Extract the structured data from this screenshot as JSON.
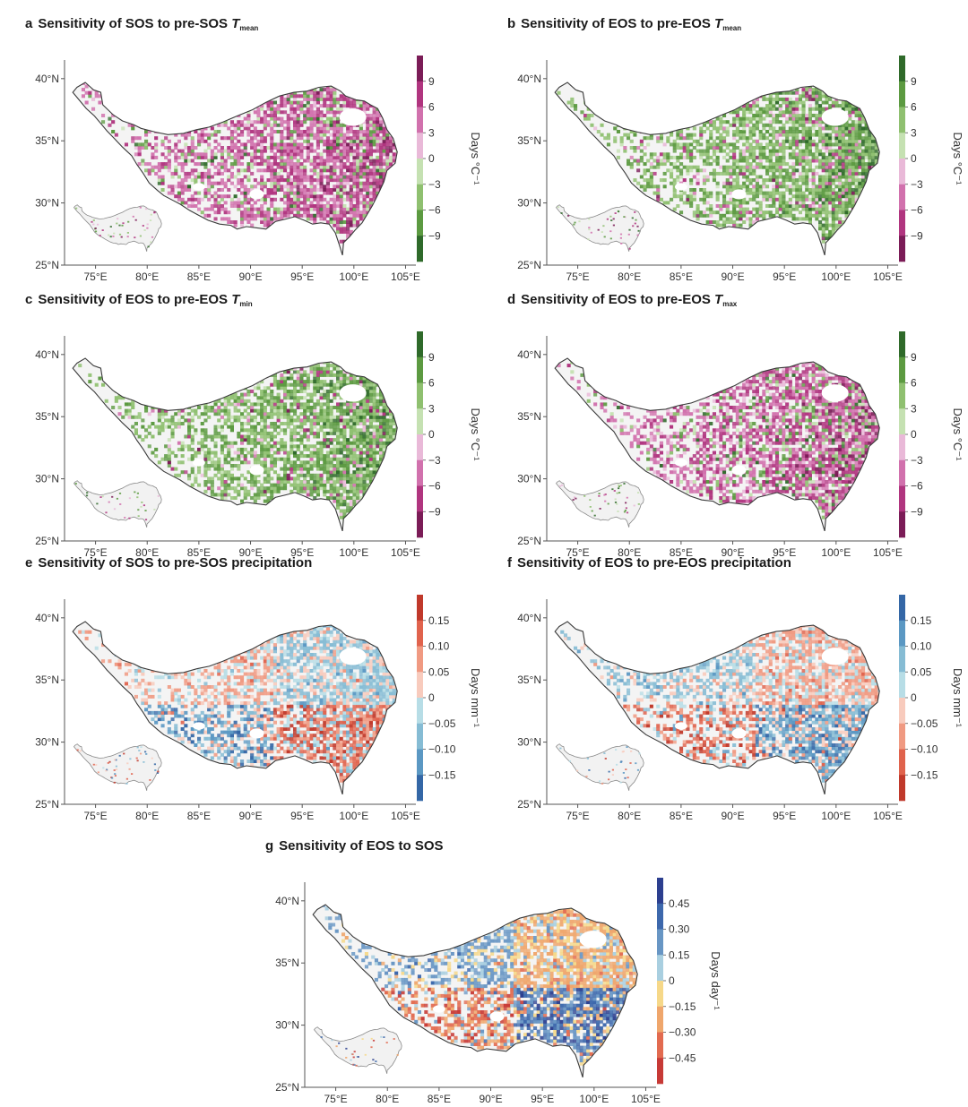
{
  "figure": {
    "panels": [
      {
        "id": "a",
        "letter": "a",
        "title_text": "Sensitivity of SOS to pre-SOS ",
        "title_var": "T",
        "title_sub": "mean",
        "unit_label": "Days °C⁻¹",
        "colorbar": {
          "ticks": [
            "9",
            "6",
            "3",
            "0",
            "−3",
            "−6",
            "−9"
          ],
          "colors": [
            "#7b1c57",
            "#b0357f",
            "#d171ad",
            "#e9b9d8",
            "#c5e1b2",
            "#8fc070",
            "#5c9a41",
            "#2f6a2a"
          ]
        },
        "field": {
          "dominant": "positive",
          "noise": 0.55
        }
      },
      {
        "id": "b",
        "letter": "b",
        "title_text": "Sensitivity of EOS to pre-EOS ",
        "title_var": "T",
        "title_sub": "mean",
        "unit_label": "Days °C⁻¹",
        "colorbar": {
          "ticks": [
            "9",
            "6",
            "3",
            "0",
            "−3",
            "−6",
            "−9"
          ],
          "colors": [
            "#2f6a2a",
            "#5c9a41",
            "#8fc070",
            "#c5e1b2",
            "#e9b9d8",
            "#d171ad",
            "#b0357f",
            "#7b1c57"
          ]
        },
        "field": {
          "dominant": "positive",
          "noise": 0.45
        }
      },
      {
        "id": "c",
        "letter": "c",
        "title_text": "Sensitivity of EOS to pre-EOS ",
        "title_var": "T",
        "title_sub": "min",
        "unit_label": "Days °C⁻¹",
        "colorbar": {
          "ticks": [
            "9",
            "6",
            "3",
            "0",
            "−3",
            "−6",
            "−9"
          ],
          "colors": [
            "#2f6a2a",
            "#5c9a41",
            "#8fc070",
            "#c5e1b2",
            "#e9b9d8",
            "#d171ad",
            "#b0357f",
            "#7b1c57"
          ]
        },
        "field": {
          "dominant": "positive",
          "noise": 0.3
        }
      },
      {
        "id": "d",
        "letter": "d",
        "title_text": "Sensitivity of EOS to pre-EOS ",
        "title_var": "T",
        "title_sub": "max",
        "unit_label": "Days °C⁻¹",
        "colorbar": {
          "ticks": [
            "9",
            "6",
            "3",
            "0",
            "−3",
            "−6",
            "−9"
          ],
          "colors": [
            "#2f6a2a",
            "#5c9a41",
            "#8fc070",
            "#c5e1b2",
            "#e9b9d8",
            "#d171ad",
            "#b0357f",
            "#7b1c57"
          ]
        },
        "field": {
          "dominant": "negative",
          "noise": 0.5
        }
      },
      {
        "id": "e",
        "letter": "e",
        "title_text": "Sensitivity of SOS to pre-SOS precipitation",
        "title_var": "",
        "title_sub": "",
        "unit_label": "Days mm⁻¹",
        "colorbar": {
          "ticks": [
            "0.15",
            "0.10",
            "0.05",
            "0",
            "−0.05",
            "−0.10",
            "−0.15"
          ],
          "colors": [
            "#c0392b",
            "#e0634d",
            "#f09a82",
            "#f8cbbd",
            "#b7dde6",
            "#86bcd4",
            "#5b98c3",
            "#3467a6"
          ]
        },
        "field": {
          "dominant": "mixed",
          "noise": 0.6
        }
      },
      {
        "id": "f",
        "letter": "f",
        "title_text": "Sensitivity of EOS to pre-EOS precipitation",
        "title_var": "",
        "title_sub": "",
        "unit_label": "Days mm⁻¹",
        "colorbar": {
          "ticks": [
            "0.15",
            "0.10",
            "0.05",
            "0",
            "−0.05",
            "−0.10",
            "−0.15"
          ],
          "colors": [
            "#3467a6",
            "#5b98c3",
            "#86bcd4",
            "#b7dde6",
            "#f8cbbd",
            "#f09a82",
            "#e0634d",
            "#c0392b"
          ]
        },
        "field": {
          "dominant": "mixed",
          "noise": 0.55
        }
      },
      {
        "id": "g",
        "letter": "g",
        "title_text": "Sensitivity of EOS to SOS",
        "title_var": "",
        "title_sub": "",
        "unit_label": "Days day⁻¹",
        "colorbar": {
          "ticks": [
            "0.45",
            "0.30",
            "0.15",
            "0",
            "−0.15",
            "−0.30",
            "−0.45"
          ],
          "colors": [
            "#2c3f8f",
            "#3d68ac",
            "#6896c4",
            "#a9cfe0",
            "#f6d889",
            "#efa66c",
            "#e26b50",
            "#c73a36"
          ]
        },
        "field": {
          "dominant": "mixed",
          "noise": 0.45
        }
      }
    ],
    "y_ticks": [
      "40°N",
      "35°N",
      "30°N",
      "25°N"
    ],
    "x_ticks": [
      "75°E",
      "80°E",
      "85°E",
      "90°E",
      "95°E",
      "100°E",
      "105°E"
    ],
    "colors": {
      "outline": "#3a3a3a",
      "axis": "#555555",
      "text": "#222222"
    }
  }
}
